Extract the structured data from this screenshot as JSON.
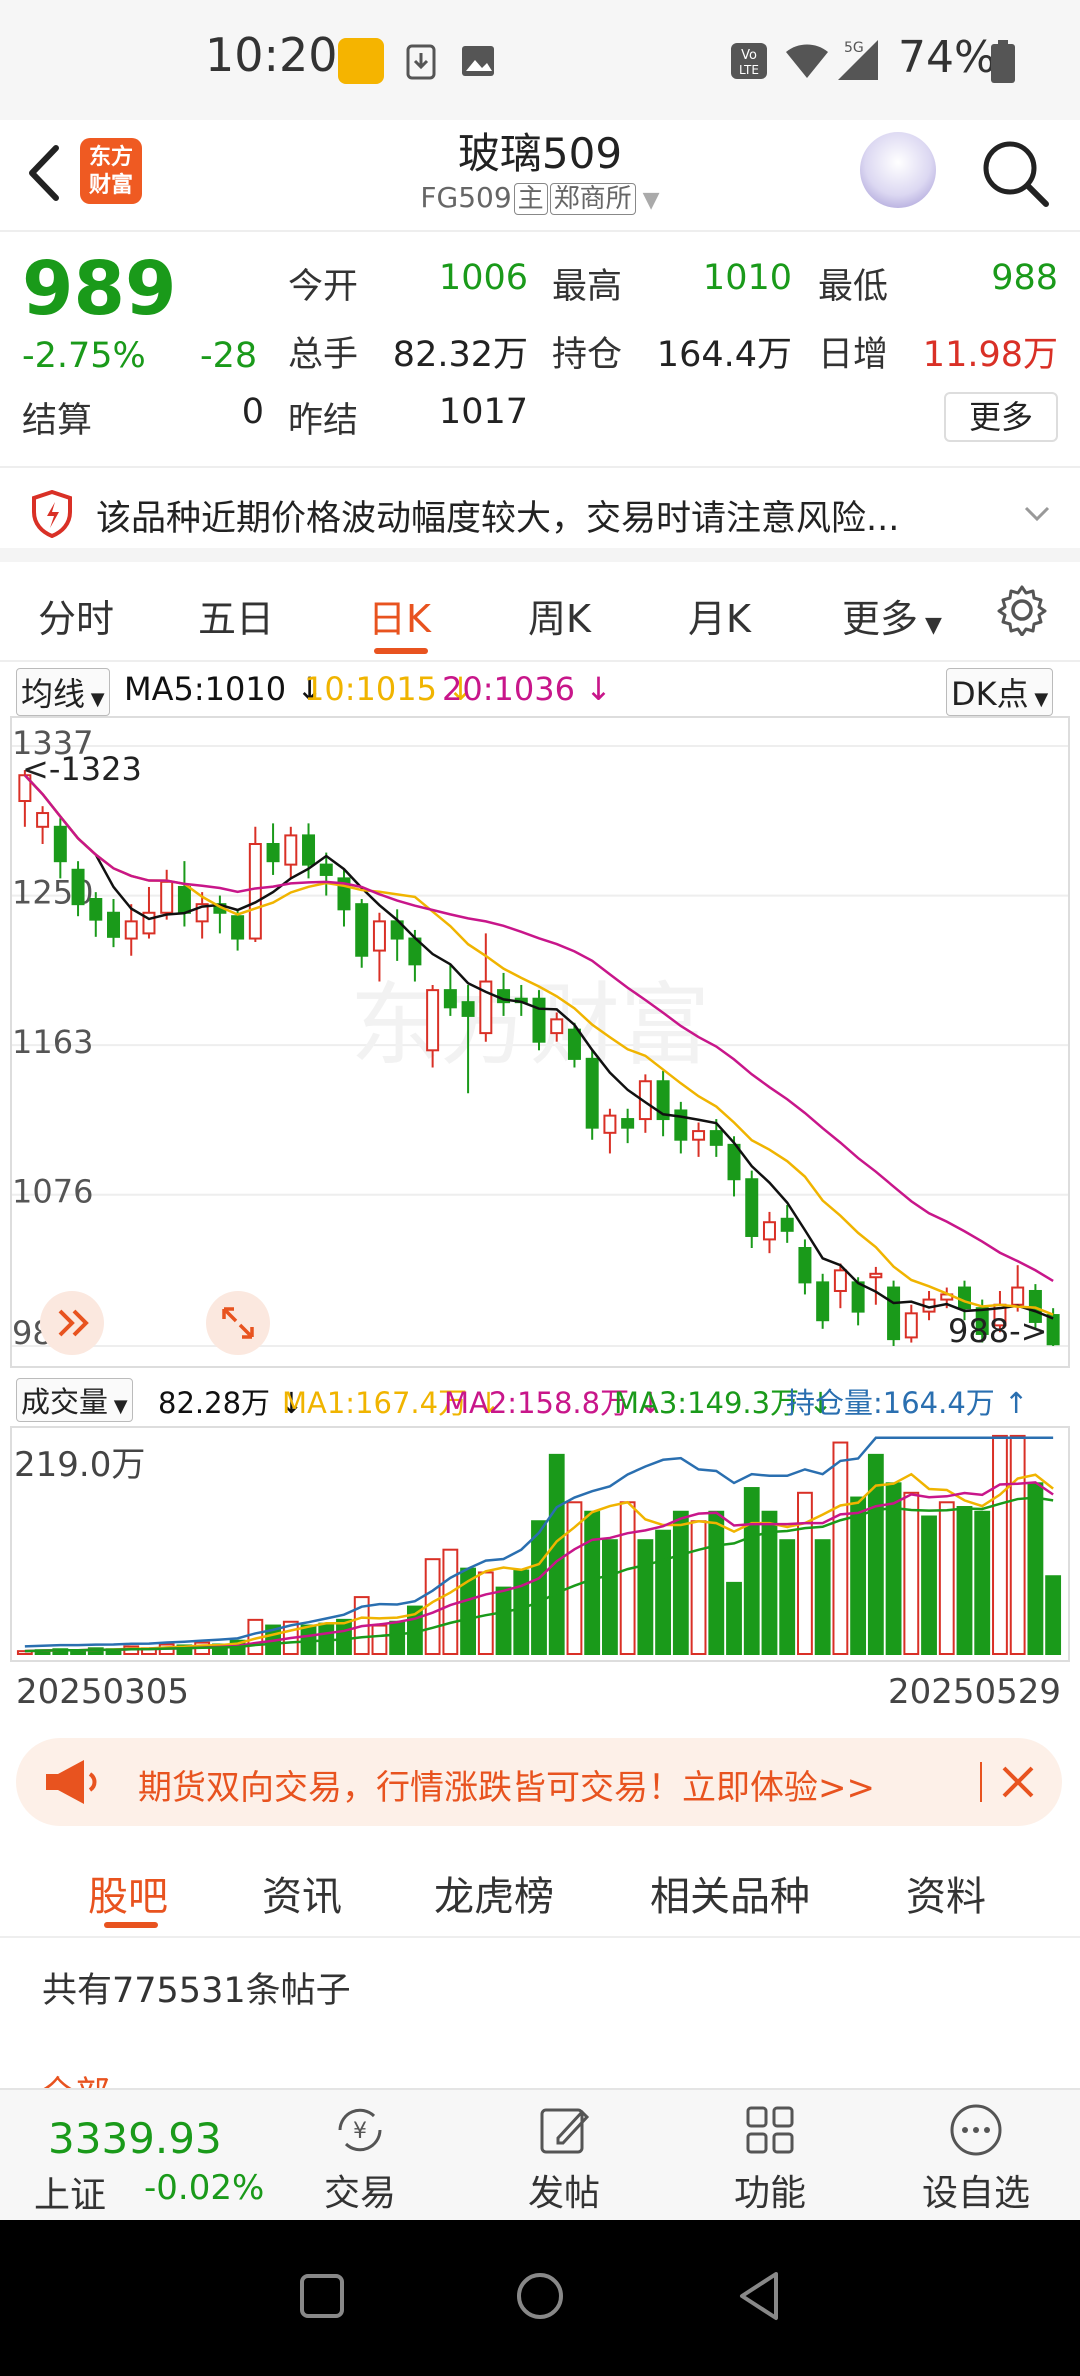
{
  "status_bar": {
    "time": "10:20",
    "network": "5G",
    "battery": "74%"
  },
  "header": {
    "logo_text": "东方财富",
    "title": "玻璃509",
    "code": "FG509",
    "tag_main": "主",
    "tag_exchange": "郑商所"
  },
  "quote": {
    "price": "989",
    "change_pct": "-2.75%",
    "change": "-28",
    "settle_label": "结算",
    "settle_value": "0",
    "open_label": "今开",
    "open_value": "1006",
    "high_label": "最高",
    "high_value": "1010",
    "low_label": "最低",
    "low_value": "988",
    "volume_label": "总手",
    "volume_value": "82.32万",
    "position_label": "持仓",
    "position_value": "164.4万",
    "daily_add_label": "日增",
    "daily_add_value": "11.98万",
    "prev_settle_label": "昨结",
    "prev_settle_value": "1017",
    "more_label": "更多"
  },
  "warning": {
    "text": "该品种近期价格波动幅度较大，交易时请注意风险..."
  },
  "period_tabs": [
    "分时",
    "五日",
    "日K",
    "周K",
    "月K",
    "更多"
  ],
  "ma_row": {
    "selector": "均线",
    "ma5": "MA5:1010",
    "ma10": "10:1015",
    "ma20": "20:1036",
    "arrow": "↓",
    "dk": "DK点"
  },
  "volume_row": {
    "selector": "成交量",
    "vol": "82.28万",
    "ma1": "MA1:167.4万",
    "ma2": "MA2:158.8万",
    "ma3": "MA3:149.3万",
    "position": "持仓量:164.4万",
    "arrow_down": "↓",
    "arrow_up": "↑"
  },
  "chart_data": {
    "type": "candlestick",
    "y_ticks": [
      "1337",
      "1250",
      "1163",
      "1076",
      "988"
    ],
    "ylim": [
      988,
      1337
    ],
    "max_marker": "1323",
    "min_marker": "988",
    "x_start": "20250305",
    "x_end": "20250529",
    "volume_axis_max": "219.0万",
    "candles": [
      {
        "o": 1305,
        "c": 1320,
        "h": 1323,
        "l": 1290
      },
      {
        "o": 1290,
        "c": 1298,
        "h": 1302,
        "l": 1280
      },
      {
        "o": 1290,
        "c": 1270,
        "h": 1295,
        "l": 1260
      },
      {
        "o": 1265,
        "c": 1245,
        "h": 1270,
        "l": 1238
      },
      {
        "o": 1248,
        "c": 1236,
        "h": 1252,
        "l": 1226
      },
      {
        "o": 1240,
        "c": 1226,
        "h": 1248,
        "l": 1220
      },
      {
        "o": 1225,
        "c": 1235,
        "h": 1245,
        "l": 1215
      },
      {
        "o": 1228,
        "c": 1240,
        "h": 1255,
        "l": 1225
      },
      {
        "o": 1240,
        "c": 1258,
        "h": 1265,
        "l": 1236
      },
      {
        "o": 1255,
        "c": 1240,
        "h": 1270,
        "l": 1232
      },
      {
        "o": 1235,
        "c": 1245,
        "h": 1252,
        "l": 1225
      },
      {
        "o": 1245,
        "c": 1240,
        "h": 1250,
        "l": 1228
      },
      {
        "o": 1238,
        "c": 1225,
        "h": 1242,
        "l": 1218
      },
      {
        "o": 1225,
        "c": 1280,
        "h": 1290,
        "l": 1223
      },
      {
        "o": 1280,
        "c": 1270,
        "h": 1292,
        "l": 1262
      },
      {
        "o": 1268,
        "c": 1285,
        "h": 1290,
        "l": 1260
      },
      {
        "o": 1285,
        "c": 1268,
        "h": 1292,
        "l": 1260
      },
      {
        "o": 1268,
        "c": 1262,
        "h": 1275,
        "l": 1250
      },
      {
        "o": 1260,
        "c": 1242,
        "h": 1265,
        "l": 1232
      },
      {
        "o": 1245,
        "c": 1215,
        "h": 1248,
        "l": 1208
      },
      {
        "o": 1218,
        "c": 1235,
        "h": 1240,
        "l": 1200
      },
      {
        "o": 1235,
        "c": 1225,
        "h": 1242,
        "l": 1212
      },
      {
        "o": 1225,
        "c": 1210,
        "h": 1230,
        "l": 1200
      },
      {
        "o": 1160,
        "c": 1195,
        "h": 1198,
        "l": 1150
      },
      {
        "o": 1195,
        "c": 1185,
        "h": 1210,
        "l": 1180
      },
      {
        "o": 1188,
        "c": 1180,
        "h": 1198,
        "l": 1135
      },
      {
        "o": 1170,
        "c": 1200,
        "h": 1228,
        "l": 1165
      },
      {
        "o": 1195,
        "c": 1188,
        "h": 1205,
        "l": 1180
      },
      {
        "o": 1190,
        "c": 1188,
        "h": 1198,
        "l": 1180
      },
      {
        "o": 1190,
        "c": 1165,
        "h": 1195,
        "l": 1160
      },
      {
        "o": 1170,
        "c": 1178,
        "h": 1182,
        "l": 1165
      },
      {
        "o": 1172,
        "c": 1155,
        "h": 1176,
        "l": 1150
      },
      {
        "o": 1155,
        "c": 1115,
        "h": 1160,
        "l": 1108
      },
      {
        "o": 1112,
        "c": 1122,
        "h": 1126,
        "l": 1100
      },
      {
        "o": 1120,
        "c": 1115,
        "h": 1126,
        "l": 1106
      },
      {
        "o": 1120,
        "c": 1142,
        "h": 1146,
        "l": 1112
      },
      {
        "o": 1142,
        "c": 1120,
        "h": 1148,
        "l": 1110
      },
      {
        "o": 1125,
        "c": 1108,
        "h": 1130,
        "l": 1100
      },
      {
        "o": 1108,
        "c": 1113,
        "h": 1118,
        "l": 1098
      },
      {
        "o": 1113,
        "c": 1105,
        "h": 1120,
        "l": 1098
      },
      {
        "o": 1105,
        "c": 1085,
        "h": 1110,
        "l": 1075
      },
      {
        "o": 1085,
        "c": 1052,
        "h": 1090,
        "l": 1045
      },
      {
        "o": 1050,
        "c": 1060,
        "h": 1066,
        "l": 1042
      },
      {
        "o": 1062,
        "c": 1055,
        "h": 1070,
        "l": 1048
      },
      {
        "o": 1045,
        "c": 1025,
        "h": 1050,
        "l": 1018
      },
      {
        "o": 1025,
        "c": 1003,
        "h": 1030,
        "l": 998
      },
      {
        "o": 1020,
        "c": 1032,
        "h": 1036,
        "l": 1010
      },
      {
        "o": 1025,
        "c": 1008,
        "h": 1028,
        "l": 1000
      },
      {
        "o": 1028,
        "c": 1030,
        "h": 1034,
        "l": 1012
      },
      {
        "o": 1022,
        "c": 992,
        "h": 1026,
        "l": 988
      },
      {
        "o": 993,
        "c": 1007,
        "h": 1012,
        "l": 990
      },
      {
        "o": 1008,
        "c": 1015,
        "h": 1020,
        "l": 1003
      },
      {
        "o": 1015,
        "c": 1018,
        "h": 1022,
        "l": 1010
      },
      {
        "o": 1022,
        "c": 1010,
        "h": 1026,
        "l": 1003
      },
      {
        "o": 1010,
        "c": 995,
        "h": 1015,
        "l": 990
      },
      {
        "o": 1000,
        "c": 1012,
        "h": 1020,
        "l": 996
      },
      {
        "o": 1012,
        "c": 1022,
        "h": 1035,
        "l": 1008
      },
      {
        "o": 1020,
        "c": 1002,
        "h": 1024,
        "l": 998
      },
      {
        "o": 1006,
        "c": 989,
        "h": 1010,
        "l": 988
      }
    ],
    "volume": [
      {
        "v": 3,
        "up": true
      },
      {
        "v": 4,
        "up": false
      },
      {
        "v": 5,
        "up": false
      },
      {
        "v": 4,
        "up": false
      },
      {
        "v": 6,
        "up": false
      },
      {
        "v": 5,
        "up": false
      },
      {
        "v": 8,
        "up": true
      },
      {
        "v": 6,
        "up": true
      },
      {
        "v": 10,
        "up": true
      },
      {
        "v": 9,
        "up": false
      },
      {
        "v": 12,
        "up": true
      },
      {
        "v": 10,
        "up": false
      },
      {
        "v": 14,
        "up": false
      },
      {
        "v": 36,
        "up": true
      },
      {
        "v": 30,
        "up": false
      },
      {
        "v": 34,
        "up": true
      },
      {
        "v": 30,
        "up": false
      },
      {
        "v": 32,
        "up": false
      },
      {
        "v": 36,
        "up": false
      },
      {
        "v": 60,
        "up": true
      },
      {
        "v": 30,
        "up": true
      },
      {
        "v": 34,
        "up": false
      },
      {
        "v": 50,
        "up": false
      },
      {
        "v": 100,
        "up": true
      },
      {
        "v": 110,
        "up": true
      },
      {
        "v": 90,
        "up": false
      },
      {
        "v": 86,
        "up": true
      },
      {
        "v": 70,
        "up": false
      },
      {
        "v": 88,
        "up": false
      },
      {
        "v": 140,
        "up": false
      },
      {
        "v": 210,
        "up": false
      },
      {
        "v": 160,
        "up": true
      },
      {
        "v": 150,
        "up": false
      },
      {
        "v": 120,
        "up": false
      },
      {
        "v": 160,
        "up": true
      },
      {
        "v": 120,
        "up": false
      },
      {
        "v": 130,
        "up": false
      },
      {
        "v": 150,
        "up": false
      },
      {
        "v": 140,
        "up": true
      },
      {
        "v": 150,
        "up": false
      },
      {
        "v": 75,
        "up": false
      },
      {
        "v": 175,
        "up": false
      },
      {
        "v": 150,
        "up": false
      },
      {
        "v": 120,
        "up": false
      },
      {
        "v": 170,
        "up": true
      },
      {
        "v": 120,
        "up": false
      },
      {
        "v": 223,
        "up": true
      },
      {
        "v": 165,
        "up": false
      },
      {
        "v": 210,
        "up": false
      },
      {
        "v": 180,
        "up": false
      },
      {
        "v": 170,
        "up": true
      },
      {
        "v": 145,
        "up": false
      },
      {
        "v": 160,
        "up": true
      },
      {
        "v": 155,
        "up": false
      },
      {
        "v": 150,
        "up": false
      },
      {
        "v": 230,
        "up": true
      },
      {
        "v": 230,
        "up": true
      },
      {
        "v": 180,
        "up": false
      },
      {
        "v": 82,
        "up": false
      }
    ]
  },
  "promo": {
    "text": "期货双向交易，行情涨跌皆可交易！立即体验>>"
  },
  "section_tabs": [
    "股吧",
    "资讯",
    "龙虎榜",
    "相关品种",
    "资料"
  ],
  "forum": {
    "post_count": "共有775531条帖子",
    "tab_all": "全部"
  },
  "bottom_bar": {
    "index_value": "3339.93",
    "index_name": "上证",
    "index_change": "-0.02%",
    "nav": [
      "交易",
      "发帖",
      "功能",
      "设自选"
    ]
  },
  "colors": {
    "up": "#d93026",
    "down": "#1a9a1a",
    "accent": "#e8531f",
    "ma5": "#111111",
    "ma10": "#f0b400",
    "ma20": "#c8168a"
  }
}
